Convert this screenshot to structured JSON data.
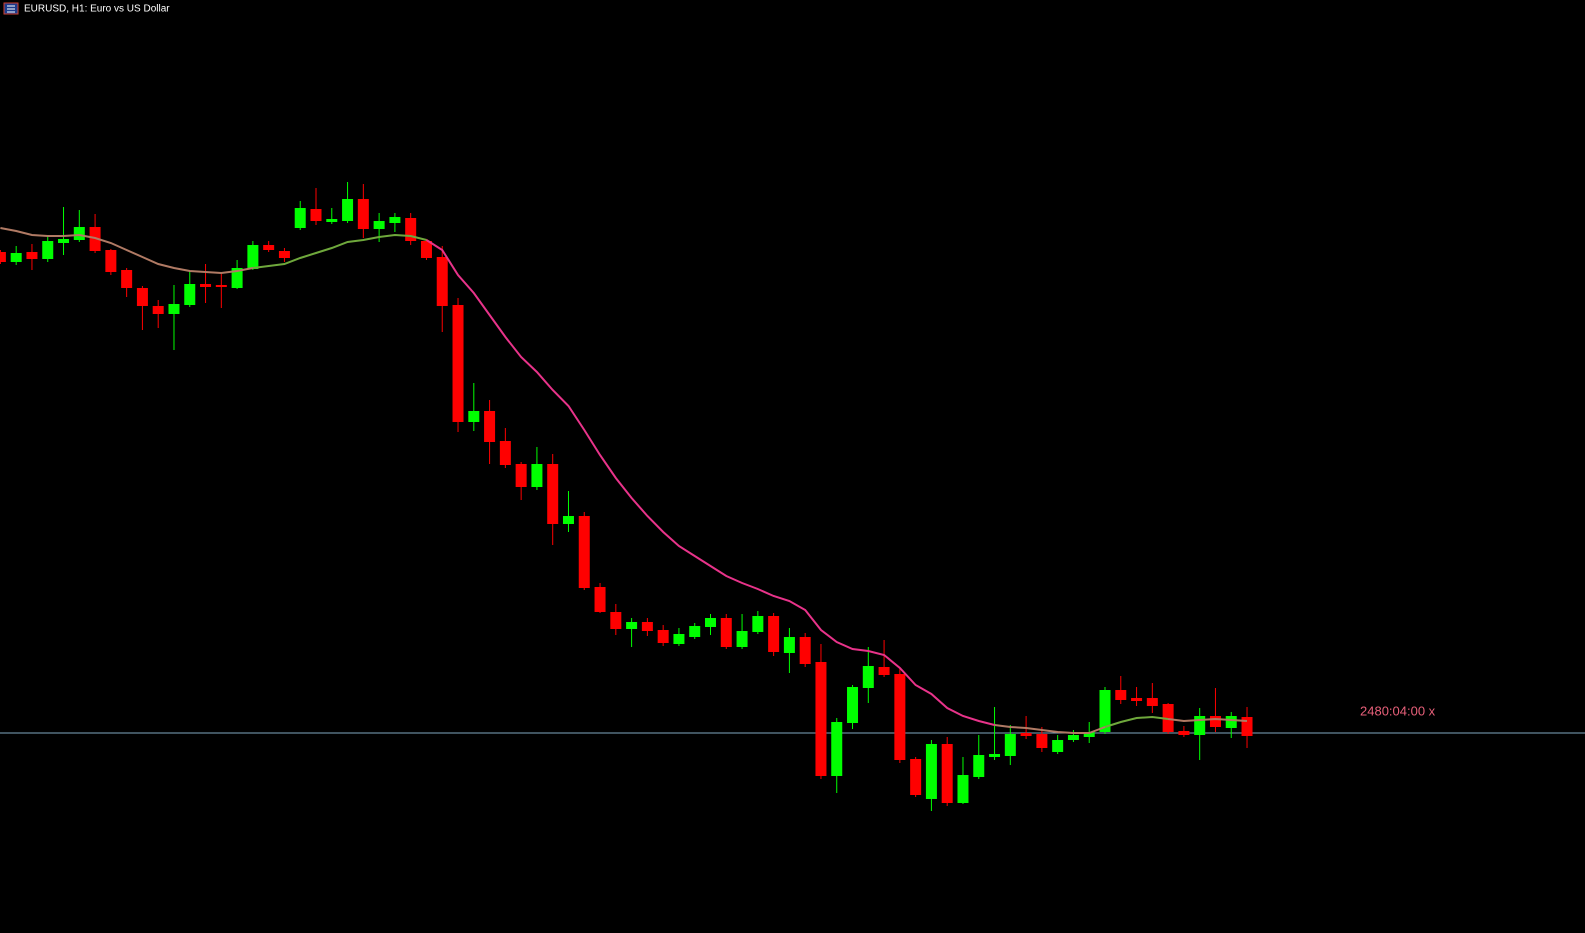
{
  "chart_data": {
    "type": "candlestick",
    "title": "EURUSD, H1:  Euro vs US Dollar",
    "ylim": [
      0,
      933
    ],
    "up_color": "#00ff00",
    "down_color": "#ff0000",
    "wick_color_up": "#00ff00",
    "wick_color_down": "#ff0000",
    "open": [
      681,
      671,
      681,
      674,
      690,
      693,
      706,
      683,
      663,
      645,
      627,
      619,
      628,
      649,
      648,
      645,
      664,
      688,
      682,
      705,
      724,
      711,
      712,
      734,
      704,
      710,
      715,
      692,
      676,
      628,
      511,
      522,
      492,
      469,
      446,
      469,
      409,
      417,
      346,
      321,
      304,
      311,
      303,
      289,
      296,
      306,
      315,
      286,
      301,
      317,
      280,
      296,
      271,
      157,
      210,
      245,
      266,
      259,
      174,
      134,
      189,
      130,
      156,
      176,
      177,
      200,
      199,
      181,
      193,
      196,
      201,
      243,
      235,
      235,
      229,
      202,
      198,
      217,
      205,
      216
    ],
    "high": [
      683,
      687,
      689,
      697,
      726,
      723,
      719,
      684,
      665,
      647,
      633,
      648,
      662,
      669,
      659,
      673,
      692,
      692,
      685,
      732,
      745,
      725,
      751,
      749,
      720,
      720,
      720,
      694,
      687,
      635,
      550,
      533,
      505,
      471,
      486,
      479,
      442,
      421,
      350,
      329,
      315,
      315,
      308,
      305,
      310,
      319,
      319,
      319,
      322,
      320,
      305,
      300,
      289,
      215,
      248,
      286,
      293,
      265,
      176,
      193,
      196,
      176,
      198,
      226,
      208,
      217,
      206,
      198,
      203,
      211,
      246,
      257,
      246,
      250,
      230,
      207,
      225,
      245,
      221,
      226
    ],
    "low": [
      669,
      668,
      663,
      671,
      678,
      691,
      680,
      658,
      636,
      603,
      605,
      583,
      626,
      630,
      625,
      644,
      663,
      681,
      671,
      703,
      708,
      709,
      710,
      695,
      691,
      701,
      688,
      673,
      601,
      501,
      502,
      469,
      465,
      433,
      443,
      388,
      401,
      343,
      320,
      298,
      286,
      297,
      287,
      287,
      294,
      298,
      284,
      284,
      299,
      277,
      260,
      266,
      154,
      140,
      204,
      230,
      256,
      170,
      136,
      122,
      127,
      129,
      154,
      173,
      168,
      194,
      181,
      179,
      191,
      190,
      199,
      229,
      227,
      220,
      199,
      196,
      173,
      201,
      195,
      185
    ],
    "close": [
      671,
      680,
      674,
      692,
      694,
      706,
      682,
      661,
      645,
      627,
      619,
      629,
      649,
      646,
      646,
      665,
      688,
      683,
      675,
      725,
      712,
      714,
      734,
      704,
      712,
      716,
      692,
      675,
      627,
      511,
      522,
      491,
      468,
      446,
      469,
      409,
      417,
      345,
      321,
      304,
      311,
      302,
      290,
      299,
      307,
      315,
      286,
      302,
      317,
      281,
      296,
      269,
      157,
      211,
      246,
      267,
      258,
      173,
      138,
      189,
      130,
      158,
      178,
      179,
      199,
      197,
      185,
      193,
      198,
      201,
      243,
      233,
      232,
      227,
      201,
      198,
      217,
      206,
      217,
      197
    ],
    "ma": {
      "values": [
        705,
        702,
        698,
        697,
        697,
        698,
        695,
        690,
        683,
        676,
        669,
        665,
        662,
        661,
        660,
        662,
        665,
        667,
        669,
        675,
        680,
        685,
        691,
        693,
        696,
        698,
        697,
        693,
        683,
        658,
        640,
        618,
        596,
        576,
        561,
        543,
        527,
        503,
        478,
        455,
        435,
        417,
        401,
        387,
        377,
        367,
        357,
        350,
        344,
        337,
        332,
        323,
        303,
        291,
        284,
        282,
        278,
        265,
        248,
        239,
        225,
        217,
        212,
        208,
        206,
        205,
        203,
        201,
        200,
        200,
        206,
        211,
        215,
        216,
        214,
        212,
        213,
        214,
        213,
        212
      ],
      "colors": [
        "#b07a64",
        "#b07a64",
        "#b07a64",
        "#b07a64",
        "#b07a64",
        "#b07a64",
        "#b07a64",
        "#b07a64",
        "#b07a64",
        "#b07a64",
        "#b07a64",
        "#b07a64",
        "#b07a64",
        "#b07a64",
        "#b07a64",
        "#b07a64",
        "#6fa83c",
        "#6fa83c",
        "#6fa83c",
        "#6fa83c",
        "#6fa83c",
        "#6fa83c",
        "#6fa83c",
        "#6fa83c",
        "#6fa83c",
        "#6fa83c",
        "#6fa83c",
        "#e8338a",
        "#e8338a",
        "#e8338a",
        "#e8338a",
        "#e8338a",
        "#e8338a",
        "#e8338a",
        "#e8338a",
        "#e8338a",
        "#e8338a",
        "#e8338a",
        "#e8338a",
        "#e8338a",
        "#e8338a",
        "#e8338a",
        "#e8338a",
        "#e8338a",
        "#e8338a",
        "#e8338a",
        "#e8338a",
        "#e8338a",
        "#e8338a",
        "#e8338a",
        "#e8338a",
        "#e8338a",
        "#e8338a",
        "#e8338a",
        "#e8338a",
        "#e8338a",
        "#e8338a",
        "#e8338a",
        "#e8338a",
        "#e8338a",
        "#e8338a",
        "#e8338a",
        "#e8338a",
        "#b07a64",
        "#b07a64",
        "#b07a64",
        "#b07a64",
        "#b07a64",
        "#b07a64",
        "#b07a64",
        "#6fa83c",
        "#6fa83c",
        "#6fa83c",
        "#6fa83c",
        "#b07a64",
        "#b07a64",
        "#b07a64",
        "#b07a64",
        "#b07a64",
        "#b07a64"
      ]
    },
    "hline": {
      "value": 200,
      "color": "#7fa9c0"
    },
    "timer_label": {
      "text": "2480:04:00 x",
      "color": "#e8607a"
    }
  }
}
